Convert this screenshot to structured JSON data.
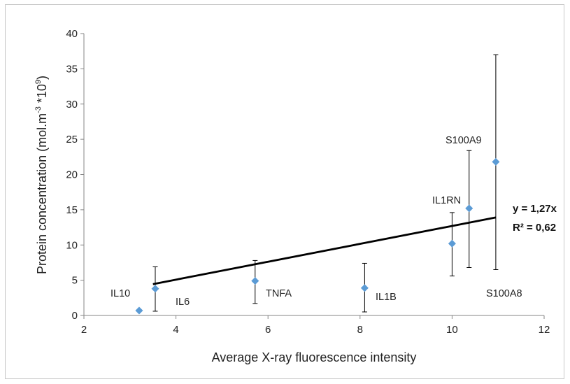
{
  "chart_data": {
    "type": "scatter",
    "title": "",
    "xlabel": "Average X-ray fluorescence intensity",
    "ylabel": {
      "pre": "Protein concentration (mol.m",
      "sup1": "-3",
      "mid": " *10",
      "sup2": "9",
      "post": ")"
    },
    "xlim": [
      2,
      12
    ],
    "ylim": [
      0,
      40
    ],
    "xticks": [
      2,
      4,
      6,
      8,
      10,
      12
    ],
    "yticks": [
      0,
      5,
      10,
      15,
      20,
      25,
      30,
      35,
      40
    ],
    "grid": false,
    "marker_color": "#5b9bd5",
    "points": [
      {
        "label": "IL10",
        "x": 3.2,
        "y": 0.7,
        "err_low": null,
        "err_high": null
      },
      {
        "label": "IL6",
        "x": 3.55,
        "y": 3.8,
        "err_low": 0.6,
        "err_high": 6.9
      },
      {
        "label": "TNFA",
        "x": 5.72,
        "y": 4.9,
        "err_low": 1.7,
        "err_high": 7.8
      },
      {
        "label": "IL1B",
        "x": 8.1,
        "y": 3.9,
        "err_low": 0.5,
        "err_high": 7.4
      },
      {
        "label": "",
        "x": 10.0,
        "y": 10.2,
        "err_low": 5.6,
        "err_high": 14.6
      },
      {
        "label": "IL1RN",
        "x": 10.37,
        "y": 15.2,
        "err_low": 6.8,
        "err_high": 23.4
      },
      {
        "label": "S100A9",
        "x": 10.95,
        "y": 21.8,
        "err_low": 6.5,
        "err_high": 37.0
      }
    ],
    "extra_labels": [
      "S100A8"
    ],
    "trendline": {
      "slope": 1.27,
      "x_range": [
        3.5,
        10.95
      ],
      "equation": "y = 1,27x",
      "r2": "R² = 0,62"
    }
  }
}
